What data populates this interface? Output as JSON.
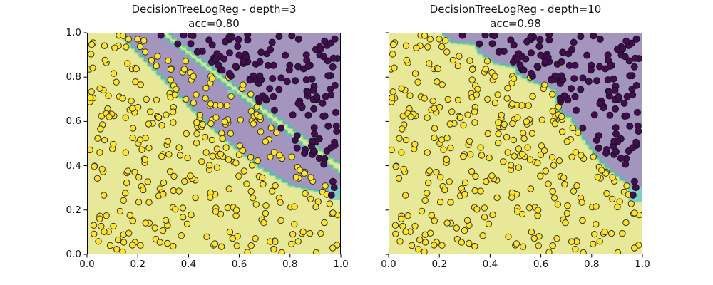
{
  "figure": {
    "background": "#ffffff",
    "kind": "matplotlib-style decision boundary comparison, 1 row x 2 columns"
  },
  "dataset": {
    "seed": 42,
    "classes": [
      {
        "name": "class-0-yellow",
        "count": 335,
        "dot_color": "#fce32f",
        "dot_edge": "#33301c",
        "radius": 4.2
      },
      {
        "name": "class-1-purple",
        "count": 148,
        "dot_color": "#440b55",
        "dot_edge": "#151515",
        "radius": 4.5
      }
    ],
    "split_margin": 0.013,
    "split_boundary": [
      [
        0.21,
        1.0
      ],
      [
        0.25,
        0.965
      ],
      [
        0.345,
        0.955
      ],
      [
        0.36,
        0.915
      ],
      [
        0.42,
        0.87
      ],
      [
        0.49,
        0.853
      ],
      [
        0.51,
        0.82
      ],
      [
        0.556,
        0.79
      ],
      [
        0.6,
        0.775
      ],
      [
        0.665,
        0.745
      ],
      [
        0.672,
        0.655
      ],
      [
        0.705,
        0.63
      ],
      [
        0.73,
        0.6
      ],
      [
        0.757,
        0.55
      ],
      [
        0.785,
        0.505
      ],
      [
        0.84,
        0.42
      ],
      [
        0.88,
        0.38
      ],
      [
        0.92,
        0.345
      ],
      [
        0.955,
        0.315
      ],
      [
        0.962,
        0.272
      ],
      [
        1.0,
        0.262
      ]
    ],
    "class1_extra_points": [
      [
        0.963,
        0.268
      ]
    ],
    "class0_extra_points": [
      [
        0.558,
        0.8
      ],
      [
        0.615,
        0.765
      ]
    ]
  },
  "chart_data": [
    {
      "type": "scatter",
      "title": "DecisionTreeLogReg - depth=3",
      "subtitle": "acc=0.80",
      "model": "DecisionTreeLogReg",
      "depth": 3,
      "accuracy": 0.8,
      "xlim": [
        0.0,
        1.0
      ],
      "ylim": [
        0.0,
        1.0
      ],
      "tick_positions": [
        0.0,
        0.2,
        0.4,
        0.6,
        0.8,
        1.0
      ],
      "x_tick_labels": [
        "0.0",
        "0.2",
        "0.4",
        "0.6",
        "0.8",
        "1.0"
      ],
      "y_tick_labels": [
        "0.0",
        "0.2",
        "0.4",
        "0.6",
        "0.8",
        "1.0"
      ],
      "grid": false,
      "legend": "none",
      "colors": {
        "class0_region": "#e7e999",
        "class1_region": "#a395bd",
        "stripes": [
          "#d2e89c",
          "#8fcd90",
          "#56b8a9",
          "#8fa0c9"
        ],
        "teal_patch": "#7fd0c4"
      },
      "regions": {
        "band_lower": [
          [
            0.13,
            1.0
          ],
          [
            0.3,
            0.8
          ],
          [
            0.42,
            0.655
          ],
          [
            0.55,
            0.52
          ],
          [
            0.68,
            0.4
          ],
          [
            0.8,
            0.32
          ],
          [
            0.9,
            0.295
          ],
          [
            1.0,
            0.285
          ]
        ],
        "band_upper": [
          [
            0.26,
            1.0
          ],
          [
            0.62,
            0.675
          ],
          [
            1.0,
            0.34
          ]
        ],
        "upper_boundary": [
          [
            0.322,
            1.0
          ],
          [
            0.66,
            0.7
          ],
          [
            1.0,
            0.41
          ]
        ],
        "teal_patches": [
          [
            0.952,
            0.245,
            0.048,
            0.065
          ],
          [
            0.555,
            0.712,
            0.028,
            0.028
          ]
        ]
      }
    },
    {
      "type": "scatter",
      "title": "DecisionTreeLogReg - depth=10",
      "subtitle": "acc=0.98",
      "model": "DecisionTreeLogReg",
      "depth": 10,
      "accuracy": 0.98,
      "xlim": [
        0.0,
        1.0
      ],
      "ylim": [
        0.0,
        1.0
      ],
      "tick_positions": [
        0.0,
        0.2,
        0.4,
        0.6,
        0.8,
        1.0
      ],
      "x_tick_labels": [
        "0.0",
        "0.2",
        "0.4",
        "0.6",
        "0.8",
        "1.0"
      ],
      "y_tick_labels": [],
      "grid": false,
      "legend": "none",
      "colors": {
        "class0_region": "#e7e999",
        "class1_region": "#a395bd",
        "stripes": [
          "#d2e89c",
          "#8fcd90",
          "#56b8a9",
          "#8fa0c9"
        ],
        "teal_patch": "#7fd0c4"
      },
      "regions": {
        "upper_boundary": [
          [
            0.21,
            1.0
          ],
          [
            0.25,
            0.965
          ],
          [
            0.345,
            0.955
          ],
          [
            0.36,
            0.915
          ],
          [
            0.42,
            0.87
          ],
          [
            0.49,
            0.853
          ],
          [
            0.51,
            0.82
          ],
          [
            0.556,
            0.79
          ],
          [
            0.6,
            0.775
          ],
          [
            0.665,
            0.745
          ],
          [
            0.672,
            0.655
          ],
          [
            0.705,
            0.63
          ],
          [
            0.73,
            0.6
          ],
          [
            0.757,
            0.55
          ],
          [
            0.785,
            0.505
          ],
          [
            0.84,
            0.42
          ],
          [
            0.88,
            0.38
          ],
          [
            0.92,
            0.345
          ],
          [
            0.955,
            0.315
          ],
          [
            0.962,
            0.272
          ],
          [
            1.0,
            0.262
          ]
        ],
        "teal_patches": [
          [
            0.945,
            0.235,
            0.055,
            0.07
          ]
        ]
      }
    }
  ]
}
